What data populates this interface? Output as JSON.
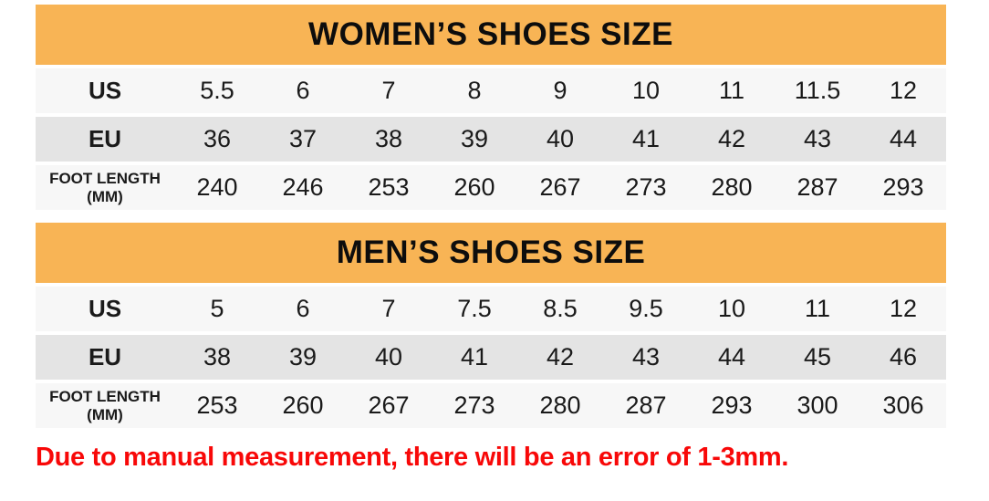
{
  "colors": {
    "accent_orange": "#F8B455",
    "row_light": "#F7F7F7",
    "row_dark": "#E4E4E4",
    "text_dark": "#1A1A1A",
    "disclaimer_red": "#F80808",
    "page_bg": "#FFFFFF"
  },
  "women_table": {
    "title": "WOMEN’S SHOES SIZE",
    "rows": [
      {
        "label": "US",
        "values": [
          "5.5",
          "6",
          "7",
          "8",
          "9",
          "10",
          "11",
          "11.5",
          "12"
        ]
      },
      {
        "label": "EU",
        "values": [
          "36",
          "37",
          "38",
          "39",
          "40",
          "41",
          "42",
          "43",
          "44"
        ]
      },
      {
        "label": "FOOT LENGTH",
        "label_sub": "(MM)",
        "values": [
          "240",
          "246",
          "253",
          "260",
          "267",
          "273",
          "280",
          "287",
          "293"
        ]
      }
    ]
  },
  "men_table": {
    "title": "MEN’S SHOES SIZE",
    "rows": [
      {
        "label": "US",
        "values": [
          "5",
          "6",
          "7",
          "7.5",
          "8.5",
          "9.5",
          "10",
          "11",
          "12"
        ]
      },
      {
        "label": "EU",
        "values": [
          "38",
          "39",
          "40",
          "41",
          "42",
          "43",
          "44",
          "45",
          "46"
        ]
      },
      {
        "label": "FOOT LENGTH",
        "label_sub": "(MM)",
        "values": [
          "253",
          "260",
          "267",
          "273",
          "280",
          "287",
          "293",
          "300",
          "306"
        ]
      }
    ]
  },
  "disclaimer": "Due to manual measurement, there will be an error of 1-3mm.",
  "chart_data": [
    {
      "type": "table",
      "title": "WOMEN’S SHOES SIZE",
      "row_headers": [
        "US",
        "EU",
        "FOOT LENGTH (MM)"
      ],
      "rows": {
        "US": [
          5.5,
          6,
          7,
          8,
          9,
          10,
          11,
          11.5,
          12
        ],
        "EU": [
          36,
          37,
          38,
          39,
          40,
          41,
          42,
          43,
          44
        ],
        "FOOT_LENGTH_MM": [
          240,
          246,
          253,
          260,
          267,
          273,
          280,
          287,
          293
        ]
      }
    },
    {
      "type": "table",
      "title": "MEN’S SHOES SIZE",
      "row_headers": [
        "US",
        "EU",
        "FOOT LENGTH (MM)"
      ],
      "rows": {
        "US": [
          5,
          6,
          7,
          7.5,
          8.5,
          9.5,
          10,
          11,
          12
        ],
        "EU": [
          38,
          39,
          40,
          41,
          42,
          43,
          44,
          45,
          46
        ],
        "FOOT_LENGTH_MM": [
          253,
          260,
          267,
          273,
          280,
          287,
          293,
          300,
          306
        ]
      }
    }
  ]
}
